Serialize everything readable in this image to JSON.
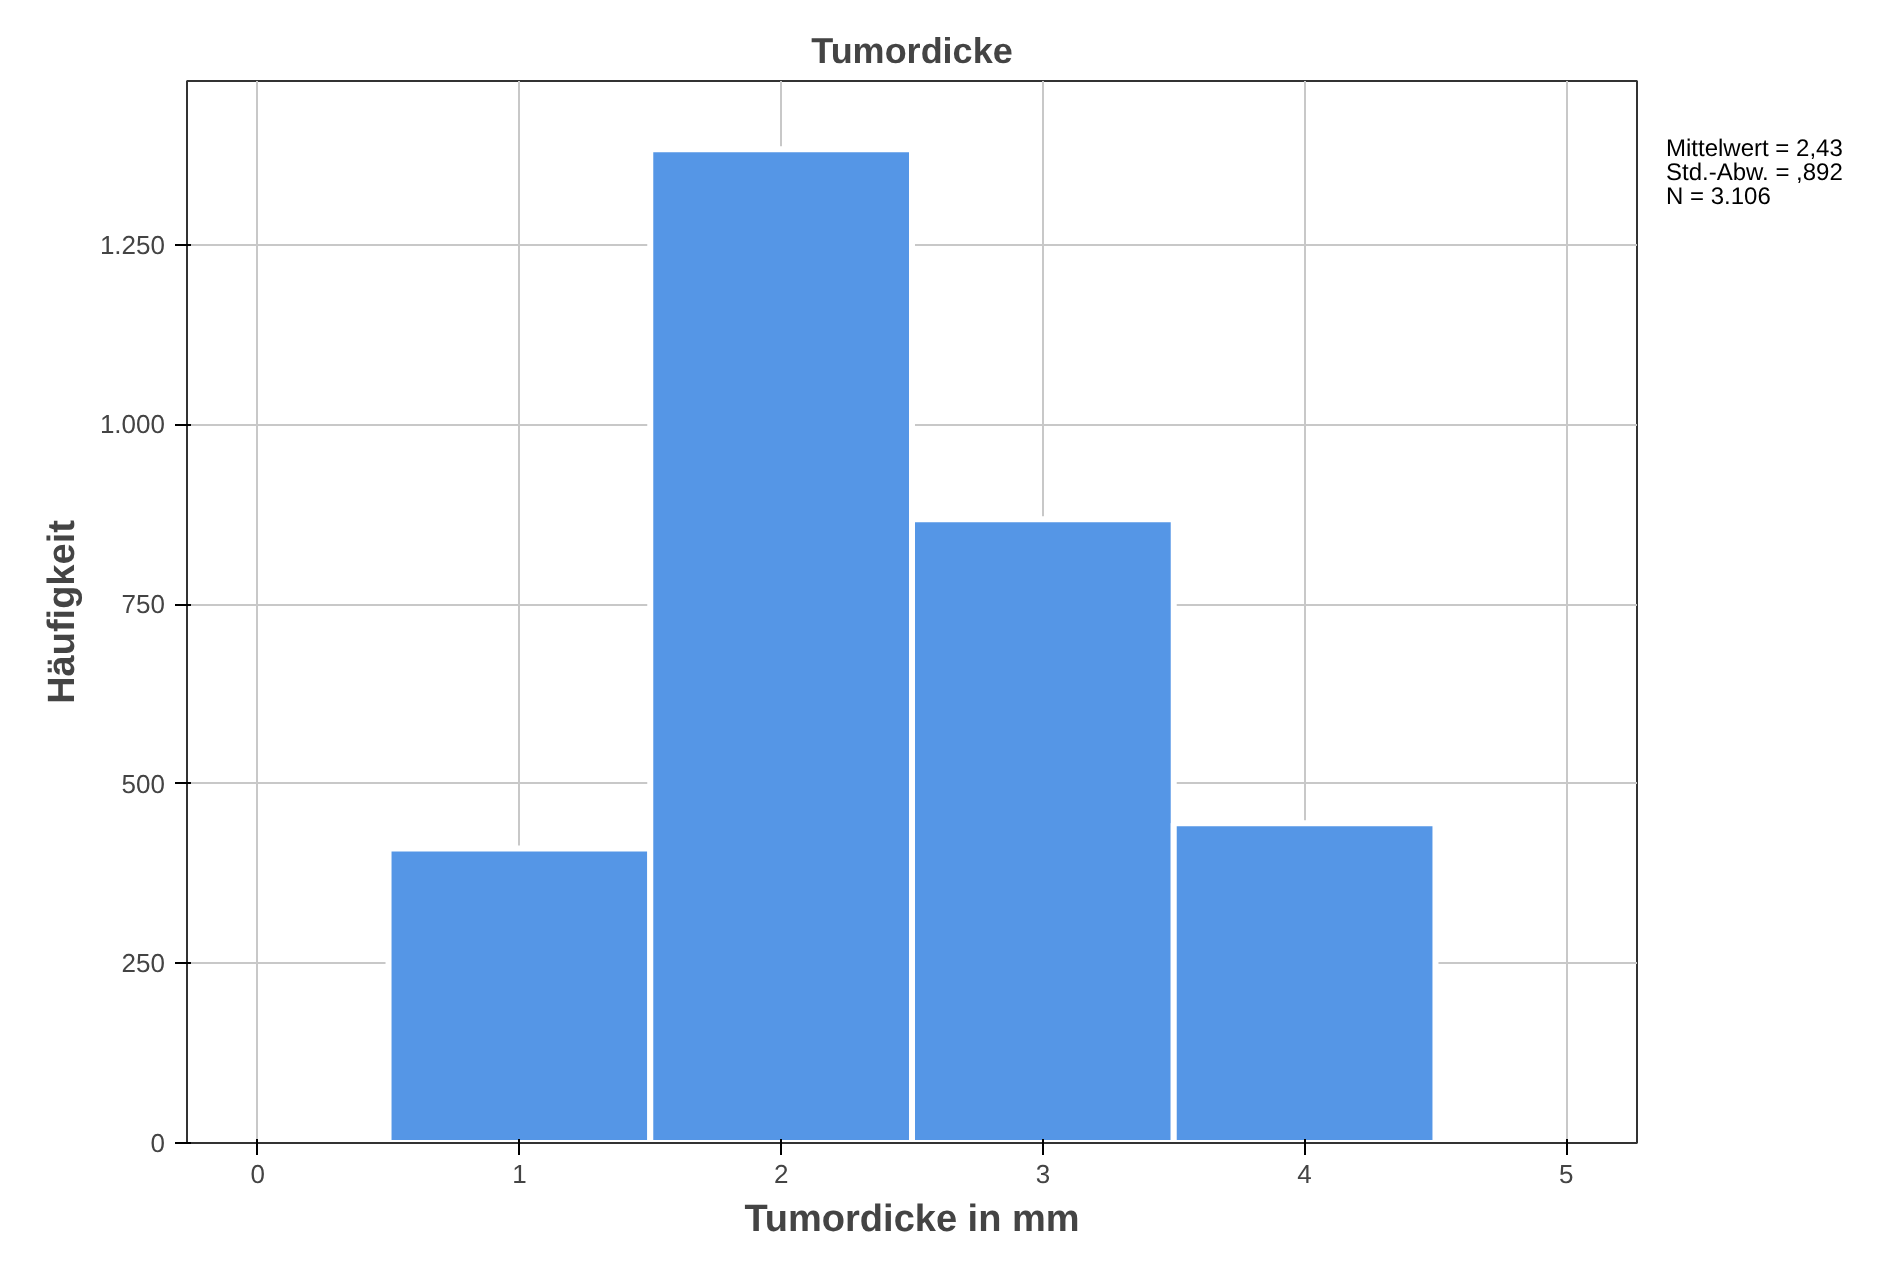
{
  "chart_data": {
    "type": "histogram",
    "title": "Tumordicke",
    "xlabel": "Tumordicke in mm",
    "ylabel": "Häufigkeit",
    "bins": [
      0.5,
      1.5,
      2.5,
      3.5,
      4.5
    ],
    "values": [
      410,
      1383,
      868,
      445
    ],
    "color": "#5596e6",
    "xlim": [
      -0.27,
      5.27
    ],
    "xticks": [
      0,
      1,
      2,
      3,
      4,
      5
    ],
    "ylim": [
      0,
      1478
    ],
    "yticks": [
      0,
      250,
      500,
      750,
      {
        "value": 1000,
        "label": "1.000"
      },
      {
        "value": 1250,
        "label": "1.250"
      }
    ],
    "grid": true,
    "annotations": [
      "Mittelwert = 2,43",
      "Std.-Abw. = ,892",
      "N = 3.106"
    ]
  }
}
